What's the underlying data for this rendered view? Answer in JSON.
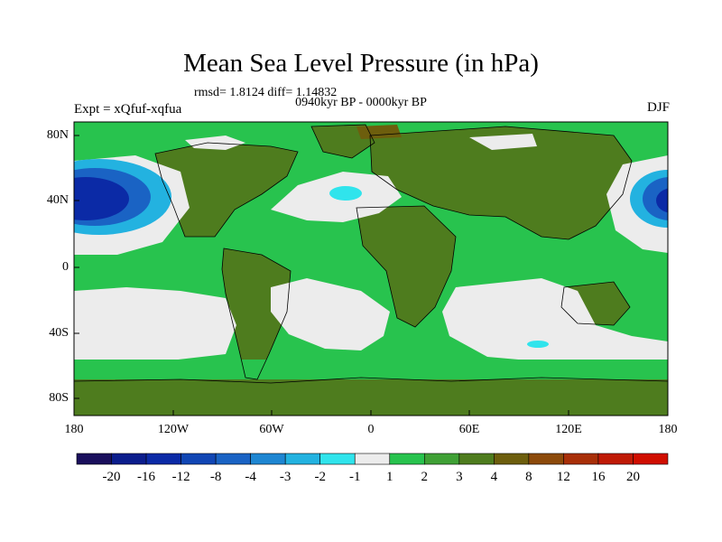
{
  "header": {
    "title": "Mean Sea Level Pressure (in hPa)",
    "stats": "rmsd= 1.8124 diff= 1.14832",
    "subtitle": "0940kyr BP - 0000kyr BP",
    "experiment": "Expt = xQfuf-xqfua",
    "season": "DJF"
  },
  "axes": {
    "y_ticks": [
      "80N",
      "40N",
      "0",
      "40S",
      "80S"
    ],
    "x_ticks": [
      "180",
      "120W",
      "60W",
      "0",
      "60E",
      "120E",
      "180"
    ]
  },
  "colorbar": {
    "labels": [
      "-20",
      "-16",
      "-12",
      "-8",
      "-4",
      "-3",
      "-2",
      "-1",
      "1",
      "2",
      "3",
      "4",
      "8",
      "12",
      "16",
      "20"
    ],
    "colors": [
      "#1a0f5c",
      "#0b1d8c",
      "#0b2aa6",
      "#1146b4",
      "#1a63c4",
      "#1e86d2",
      "#23b2e0",
      "#30e4ec",
      "#ececec",
      "#28c34e",
      "#3fa035",
      "#4e7c1e",
      "#6d5e0d",
      "#8c4a0a",
      "#a82f08",
      "#bf1a06",
      "#d00e00"
    ]
  },
  "field_colors": {
    "ocean_base": "#28c34e",
    "land": "#4e7c1e",
    "white": "#ececec",
    "cyan": "#30e4ec",
    "low_center": "#0b2aa6",
    "low_mid": "#1a63c4",
    "low_edge": "#23b2e0",
    "brown": "#6d5e0d",
    "coast": "#000000"
  }
}
